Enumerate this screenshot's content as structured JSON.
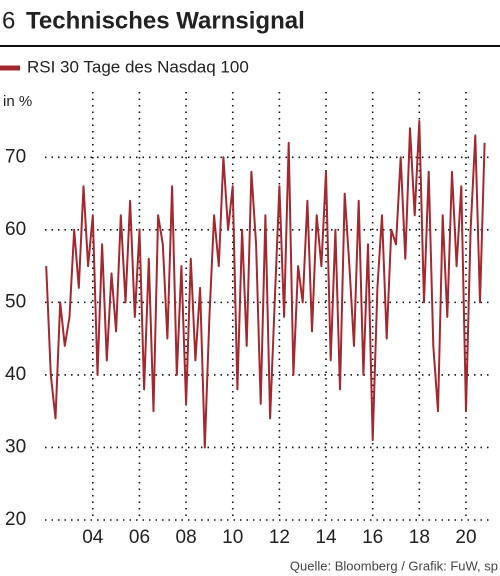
{
  "chart_data": {
    "type": "line",
    "number": "6",
    "title": "Technisches Warnsignal",
    "y_label": "in %",
    "source": "Quelle: Bloomberg / Grafik: FuW, sp",
    "x": [
      2002.0,
      2002.2,
      2002.4,
      2002.6,
      2002.8,
      2003.0,
      2003.2,
      2003.4,
      2003.6,
      2003.8,
      2004.0,
      2004.2,
      2004.4,
      2004.6,
      2004.8,
      2005.0,
      2005.2,
      2005.4,
      2005.6,
      2005.8,
      2006.0,
      2006.2,
      2006.4,
      2006.6,
      2006.8,
      2007.0,
      2007.2,
      2007.4,
      2007.6,
      2007.8,
      2008.0,
      2008.2,
      2008.4,
      2008.6,
      2008.8,
      2009.0,
      2009.2,
      2009.4,
      2009.6,
      2009.8,
      2010.0,
      2010.2,
      2010.4,
      2010.6,
      2010.8,
      2011.0,
      2011.2,
      2011.4,
      2011.6,
      2011.8,
      2012.0,
      2012.2,
      2012.4,
      2012.6,
      2012.8,
      2013.0,
      2013.2,
      2013.4,
      2013.6,
      2013.8,
      2014.0,
      2014.2,
      2014.4,
      2014.6,
      2014.8,
      2015.0,
      2015.2,
      2015.4,
      2015.6,
      2015.8,
      2016.0,
      2016.2,
      2016.4,
      2016.6,
      2016.8,
      2017.0,
      2017.2,
      2017.4,
      2017.6,
      2017.8,
      2018.0,
      2018.2,
      2018.4,
      2018.6,
      2018.8,
      2019.0,
      2019.2,
      2019.4,
      2019.6,
      2019.8,
      2020.0,
      2020.2,
      2020.4,
      2020.6,
      2020.8
    ],
    "series": [
      {
        "name": "RSI 30 Tage des Nasdaq 100",
        "color": "#a3282f",
        "values": [
          55,
          40,
          34,
          50,
          44,
          48,
          60,
          52,
          66,
          55,
          62,
          40,
          58,
          42,
          54,
          46,
          62,
          50,
          64,
          48,
          60,
          38,
          56,
          35,
          62,
          58,
          45,
          66,
          40,
          55,
          36,
          56,
          42,
          52,
          30,
          48,
          62,
          55,
          70,
          60,
          66,
          38,
          60,
          44,
          68,
          58,
          36,
          62,
          34,
          50,
          66,
          48,
          72,
          40,
          55,
          50,
          64,
          46,
          62,
          55,
          68,
          42,
          60,
          38,
          65,
          55,
          44,
          64,
          40,
          58,
          31,
          52,
          62,
          45,
          60,
          58,
          70,
          56,
          74,
          62,
          75,
          50,
          68,
          44,
          35,
          62,
          48,
          68,
          55,
          66,
          35,
          60,
          73,
          50,
          72
        ]
      }
    ],
    "xlim": [
      2001.95,
      2021.03
    ],
    "xticks": [
      {
        "value": 2004,
        "label": "04"
      },
      {
        "value": 2006,
        "label": "06"
      },
      {
        "value": 2008,
        "label": "08"
      },
      {
        "value": 2010,
        "label": "10"
      },
      {
        "value": 2012,
        "label": "12"
      },
      {
        "value": 2014,
        "label": "14"
      },
      {
        "value": 2016,
        "label": "16"
      },
      {
        "value": 2018,
        "label": "18"
      },
      {
        "value": 2020,
        "label": "20"
      }
    ],
    "ylim": [
      20,
      79
    ],
    "yticks": [
      20,
      30,
      40,
      50,
      60,
      70
    ],
    "grid": true
  }
}
